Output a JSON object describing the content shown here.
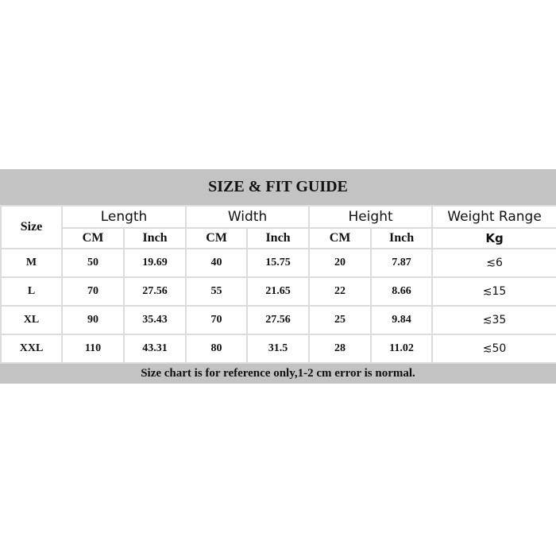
{
  "title": "SIZE & FIT GUIDE",
  "headers": {
    "size": "Size",
    "length": "Length",
    "width": "Width",
    "height": "Height",
    "weight": "Weight Range",
    "cm": "CM",
    "inch": "Inch",
    "kg": "Kg"
  },
  "rows": [
    {
      "size": "M",
      "length_cm": "50",
      "length_in": "19.69",
      "width_cm": "40",
      "width_in": "15.75",
      "height_cm": "20",
      "height_in": "7.87",
      "weight": "≲6"
    },
    {
      "size": "L",
      "length_cm": "70",
      "length_in": "27.56",
      "width_cm": "55",
      "width_in": "21.65",
      "height_cm": "22",
      "height_in": "8.66",
      "weight": "≲15"
    },
    {
      "size": "XL",
      "length_cm": "90",
      "length_in": "35.43",
      "width_cm": "70",
      "width_in": "27.56",
      "height_cm": "25",
      "height_in": "9.84",
      "weight": "≲35"
    },
    {
      "size": "XXL",
      "length_cm": "110",
      "length_in": "43.31",
      "width_cm": "80",
      "width_in": "31.5",
      "height_cm": "28",
      "height_in": "11.02",
      "weight": "≲50"
    }
  ],
  "footer": "Size chart is for reference only,1-2 cm error is normal."
}
